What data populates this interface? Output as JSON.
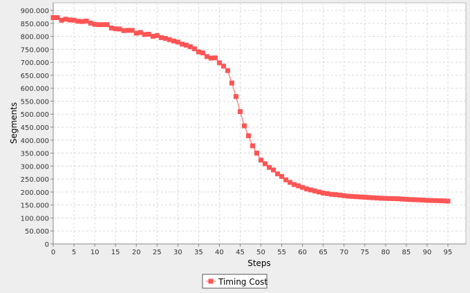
{
  "chart_data": {
    "type": "line",
    "title": "",
    "xlabel": "Steps",
    "ylabel": "Segments",
    "xlim": [
      0,
      97
    ],
    "ylim": [
      0,
      900000
    ],
    "x_ticks": [
      0,
      5,
      10,
      15,
      20,
      25,
      30,
      35,
      40,
      45,
      50,
      55,
      60,
      65,
      70,
      75,
      80,
      85,
      90,
      95
    ],
    "y_ticks": [
      {
        "value": 0,
        "label": "0"
      },
      {
        "value": 50000,
        "label": "50.000"
      },
      {
        "value": 100000,
        "label": "100.000"
      },
      {
        "value": 150000,
        "label": "150.000"
      },
      {
        "value": 200000,
        "label": "200.000"
      },
      {
        "value": 250000,
        "label": "250.000"
      },
      {
        "value": 300000,
        "label": "300.000"
      },
      {
        "value": 350000,
        "label": "350.000"
      },
      {
        "value": 400000,
        "label": "400.000"
      },
      {
        "value": 450000,
        "label": "450.000"
      },
      {
        "value": 500000,
        "label": "500.000"
      },
      {
        "value": 550000,
        "label": "550.000"
      },
      {
        "value": 600000,
        "label": "600.000"
      },
      {
        "value": 650000,
        "label": "650.000"
      },
      {
        "value": 700000,
        "label": "700.000"
      },
      {
        "value": 750000,
        "label": "750.000"
      },
      {
        "value": 800000,
        "label": "800.000"
      },
      {
        "value": 850000,
        "label": "850.000"
      },
      {
        "value": 900000,
        "label": "900.000"
      }
    ],
    "grid": true,
    "legend_position": "bottom-center",
    "series": [
      {
        "name": "Timing Cost",
        "color": "#ff5555",
        "marker": "square",
        "x": [
          0,
          1,
          2,
          3,
          4,
          5,
          6,
          7,
          8,
          9,
          10,
          11,
          12,
          13,
          14,
          15,
          16,
          17,
          18,
          19,
          20,
          21,
          22,
          23,
          24,
          25,
          26,
          27,
          28,
          29,
          30,
          31,
          32,
          33,
          34,
          35,
          36,
          37,
          38,
          39,
          40,
          41,
          42,
          43,
          44,
          45,
          46,
          47,
          48,
          49,
          50,
          51,
          52,
          53,
          54,
          55,
          56,
          57,
          58,
          59,
          60,
          61,
          62,
          63,
          64,
          65,
          66,
          67,
          68,
          69,
          70,
          71,
          72,
          73,
          74,
          75,
          76,
          77,
          78,
          79,
          80,
          81,
          82,
          83,
          84,
          85,
          86,
          87,
          88,
          89,
          90,
          91,
          92,
          93,
          94,
          95
        ],
        "values": [
          872000,
          872000,
          862000,
          866000,
          863000,
          862000,
          858000,
          857000,
          859000,
          851000,
          846000,
          845000,
          845000,
          845000,
          832000,
          829000,
          828000,
          822000,
          823000,
          823000,
          812000,
          815000,
          807000,
          808000,
          800000,
          803000,
          795000,
          792000,
          787000,
          782000,
          778000,
          770000,
          766000,
          760000,
          752000,
          740000,
          736000,
          722000,
          716000,
          717000,
          698000,
          685000,
          668000,
          620000,
          568000,
          510000,
          455000,
          417000,
          378000,
          350000,
          323000,
          309000,
          295000,
          285000,
          270000,
          260000,
          247000,
          237000,
          229000,
          224000,
          218000,
          212000,
          208000,
          204000,
          200000,
          196000,
          194000,
          191000,
          190000,
          188000,
          186000,
          184000,
          183000,
          182000,
          181000,
          180000,
          179000,
          178000,
          177000,
          176000,
          175500,
          175000,
          174500,
          174000,
          173000,
          172000,
          171000,
          170500,
          170000,
          169000,
          168000,
          167500,
          167000,
          166500,
          166000,
          165000
        ]
      }
    ]
  }
}
